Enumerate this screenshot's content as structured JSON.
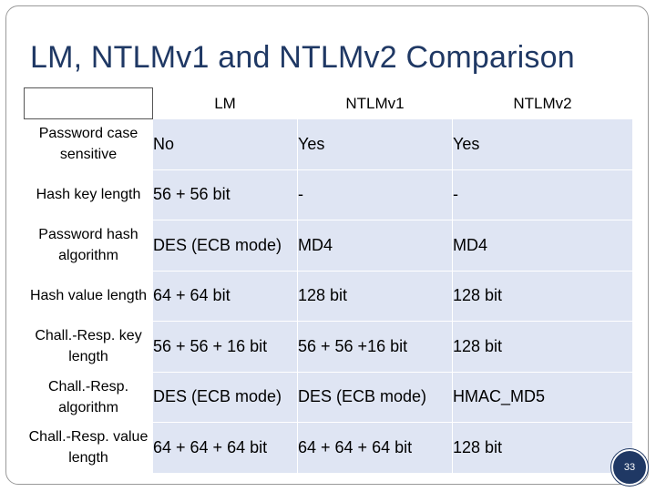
{
  "slide": {
    "title": "LM, NTLMv1 and NTLMv2 Comparison",
    "page_number": "33"
  },
  "table": {
    "columns": [
      "",
      "LM",
      "NTLMv1",
      "NTLMv2"
    ],
    "rows": [
      {
        "label": "Password case sensitive",
        "values": [
          "No",
          "Yes",
          "Yes"
        ]
      },
      {
        "label": "Hash key length",
        "values": [
          "56 + 56 bit",
          "-",
          "-"
        ]
      },
      {
        "label": "Password hash algorithm",
        "values": [
          "DES (ECB mode)",
          "MD4",
          "MD4"
        ]
      },
      {
        "label": "Hash value length",
        "values": [
          "64 + 64 bit",
          "128 bit",
          "128 bit"
        ]
      },
      {
        "label": "Chall.-Resp. key length",
        "values": [
          "56 + 56 + 16 bit",
          "56 + 56 +16 bit",
          "128 bit"
        ]
      },
      {
        "label": "Chall.-Resp. algorithm",
        "values": [
          "DES (ECB mode)",
          "DES (ECB mode)",
          "HMAC_MD5"
        ]
      },
      {
        "label": "Chall.-Resp. value length",
        "values": [
          "64 + 64 + 64 bit",
          "64 + 64 + 64 bit",
          "128 bit"
        ]
      }
    ]
  }
}
